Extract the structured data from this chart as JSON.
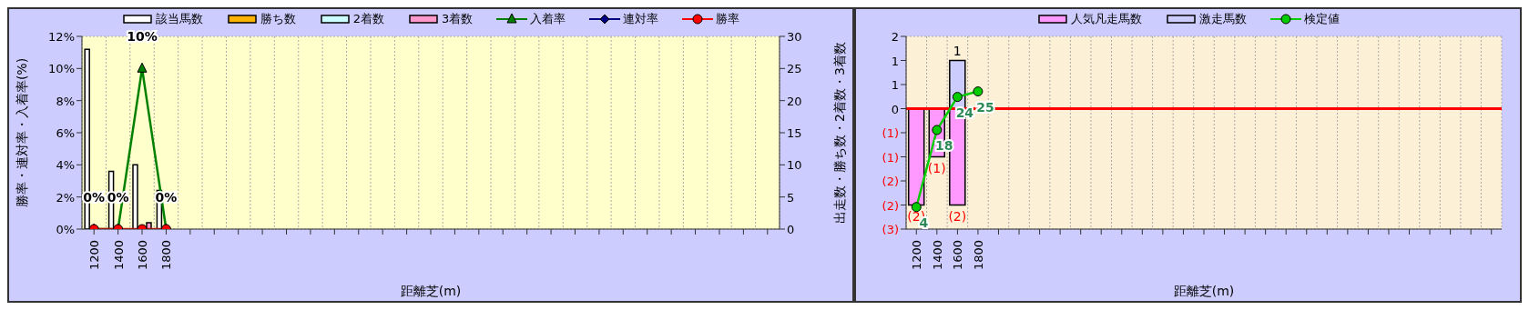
{
  "chart_data": [
    {
      "type": "bar",
      "xlabel": "距離芝(m)",
      "ylabel": "勝率・連対率・入着率(%)",
      "y2label": "出走数・勝ち数・2着数・3着数",
      "categories": [
        "1200",
        "1400",
        "1600",
        "1800",
        null,
        null,
        null,
        null,
        null,
        null,
        null,
        null,
        null,
        null,
        null,
        null,
        null,
        null,
        null,
        null,
        null,
        null,
        null,
        null,
        null,
        null,
        null,
        null,
        null
      ],
      "ylim": [
        0,
        12
      ],
      "yticks": [
        {
          "value": 0,
          "label": "0%"
        },
        {
          "value": 2,
          "label": "2%"
        },
        {
          "value": 4,
          "label": "4%"
        },
        {
          "value": 6,
          "label": "6%"
        },
        {
          "value": 8,
          "label": "8%"
        },
        {
          "value": 10,
          "label": "10%"
        },
        {
          "value": 12,
          "label": "12%"
        }
      ],
      "y2lim": [
        0,
        30
      ],
      "y2ticks": [
        0,
        5,
        10,
        15,
        20,
        25,
        30
      ],
      "grid": true,
      "legend": "top",
      "series": [
        {
          "name": "該当馬数",
          "axis": "y2",
          "color": "#ffffff",
          "values": [
            28,
            9,
            10,
            6,
            null,
            null,
            null,
            null,
            null,
            null,
            null,
            null,
            null,
            null,
            null,
            null,
            null,
            null,
            null,
            null,
            null,
            null,
            null,
            null,
            null,
            null,
            null,
            null,
            null
          ]
        },
        {
          "name": "勝ち数",
          "axis": "y2",
          "color": "#ffb300",
          "values": [
            0,
            0,
            0,
            0,
            null,
            null,
            null,
            null,
            null,
            null,
            null,
            null,
            null,
            null,
            null,
            null,
            null,
            null,
            null,
            null,
            null,
            null,
            null,
            null,
            null,
            null,
            null,
            null,
            null
          ]
        },
        {
          "name": "2着数",
          "axis": "y2",
          "color": "#ccffff",
          "values": [
            0,
            0,
            0,
            0,
            null,
            null,
            null,
            null,
            null,
            null,
            null,
            null,
            null,
            null,
            null,
            null,
            null,
            null,
            null,
            null,
            null,
            null,
            null,
            null,
            null,
            null,
            null,
            null,
            null
          ]
        },
        {
          "name": "3着数",
          "axis": "y2",
          "color": "#ff99cc",
          "values": [
            0,
            0,
            1,
            0,
            null,
            null,
            null,
            null,
            null,
            null,
            null,
            null,
            null,
            null,
            null,
            null,
            null,
            null,
            null,
            null,
            null,
            null,
            null,
            null,
            null,
            null,
            null,
            null,
            null
          ]
        },
        {
          "name": "入着率",
          "type": "line",
          "color": "#008000",
          "marker": "triangle",
          "values": [
            0,
            0,
            10,
            0,
            null,
            null,
            null,
            null,
            null,
            null,
            null,
            null,
            null,
            null,
            null,
            null,
            null,
            null,
            null,
            null,
            null,
            null,
            null,
            null,
            null,
            null,
            null,
            null,
            null
          ],
          "value_labels": [
            "0%",
            "0%",
            "10%",
            "0%",
            null,
            null,
            null,
            null,
            null,
            null,
            null,
            null,
            null,
            null,
            null,
            null,
            null,
            null,
            null,
            null,
            null,
            null,
            null,
            null,
            null,
            null,
            null,
            null,
            null
          ]
        },
        {
          "name": "連対率",
          "type": "line",
          "color": "#000080",
          "marker": "diamond",
          "values": [
            null,
            null,
            null,
            null,
            null,
            null,
            null,
            null,
            null,
            null,
            null,
            null,
            null,
            null,
            null,
            null,
            null,
            null,
            null,
            null,
            null,
            null,
            null,
            null,
            null,
            null,
            null,
            null,
            null
          ]
        },
        {
          "name": "勝率",
          "type": "line",
          "color": "#ff0000",
          "marker": "circle",
          "values": [
            0,
            0,
            0,
            0,
            null,
            null,
            null,
            null,
            null,
            null,
            null,
            null,
            null,
            null,
            null,
            null,
            null,
            null,
            null,
            null,
            null,
            null,
            null,
            null,
            null,
            null,
            null,
            null,
            null
          ]
        }
      ]
    },
    {
      "type": "bar",
      "stacked": true,
      "xlabel": "距離芝(m)",
      "categories": [
        "1200",
        "1400",
        "1600",
        "1800",
        null,
        null,
        null,
        null,
        null,
        null,
        null,
        null,
        null,
        null,
        null,
        null,
        null,
        null,
        null,
        null,
        null,
        null,
        null,
        null,
        null,
        null,
        null,
        null,
        null
      ],
      "ylim": [
        -2.5,
        1.5
      ],
      "yticks": [
        {
          "value": -2.5,
          "label": "(3)"
        },
        {
          "value": -2,
          "label": "(2)"
        },
        {
          "value": -1.5,
          "label": "(2)"
        },
        {
          "value": -1,
          "label": "(1)"
        },
        {
          "value": -0.5,
          "label": "(1)"
        },
        0,
        {
          "value": 0.5,
          "label": "1"
        },
        {
          "value": 1,
          "label": "1"
        },
        {
          "value": 1.5,
          "label": "2"
        }
      ],
      "grid": true,
      "legend": "top",
      "ref_lines": [
        {
          "axis": "y",
          "value": 0,
          "color": "#ff0000"
        }
      ],
      "series": [
        {
          "name": "人気凡走馬数",
          "color": "#ff99ff",
          "values": [
            -2,
            -1,
            -2,
            null,
            null,
            null,
            null,
            null,
            null,
            null,
            null,
            null,
            null,
            null,
            null,
            null,
            null,
            null,
            null,
            null,
            null,
            null,
            null,
            null,
            null,
            null,
            null,
            null,
            null
          ],
          "value_labels": [
            "(2)",
            "(1)",
            "(2)",
            null,
            null,
            null,
            null,
            null,
            null,
            null,
            null,
            null,
            null,
            null,
            null,
            null,
            null,
            null,
            null,
            null,
            null,
            null,
            null,
            null,
            null,
            null,
            null,
            null,
            null
          ]
        },
        {
          "name": "激走馬数",
          "color": "#ccccff",
          "values": [
            null,
            null,
            1,
            null,
            null,
            null,
            null,
            null,
            null,
            null,
            null,
            null,
            null,
            null,
            null,
            null,
            null,
            null,
            null,
            null,
            null,
            null,
            null,
            null,
            null,
            null,
            null,
            null,
            null
          ],
          "value_labels": [
            null,
            null,
            "1",
            null,
            null,
            null,
            null,
            null,
            null,
            null,
            null,
            null,
            null,
            null,
            null,
            null,
            null,
            null,
            null,
            null,
            null,
            null,
            null,
            null,
            null,
            null,
            null,
            null,
            null
          ]
        },
        {
          "name": "検定値",
          "type": "line",
          "axis": "y2",
          "color": "#00cc00",
          "marker": "circle",
          "values": [
            4,
            18,
            24,
            25,
            null,
            null,
            null,
            null,
            null,
            null,
            null,
            null,
            null,
            null,
            null,
            null,
            null,
            null,
            null,
            null,
            null,
            null,
            null,
            null,
            null,
            null,
            null,
            null,
            null
          ],
          "value_labels": [
            "4",
            "18",
            "24",
            "25",
            null,
            null,
            null,
            null,
            null,
            null,
            null,
            null,
            null,
            null,
            null,
            null,
            null,
            null,
            null,
            null,
            null,
            null,
            null,
            null,
            null,
            null,
            null,
            null,
            null
          ]
        }
      ]
    }
  ]
}
